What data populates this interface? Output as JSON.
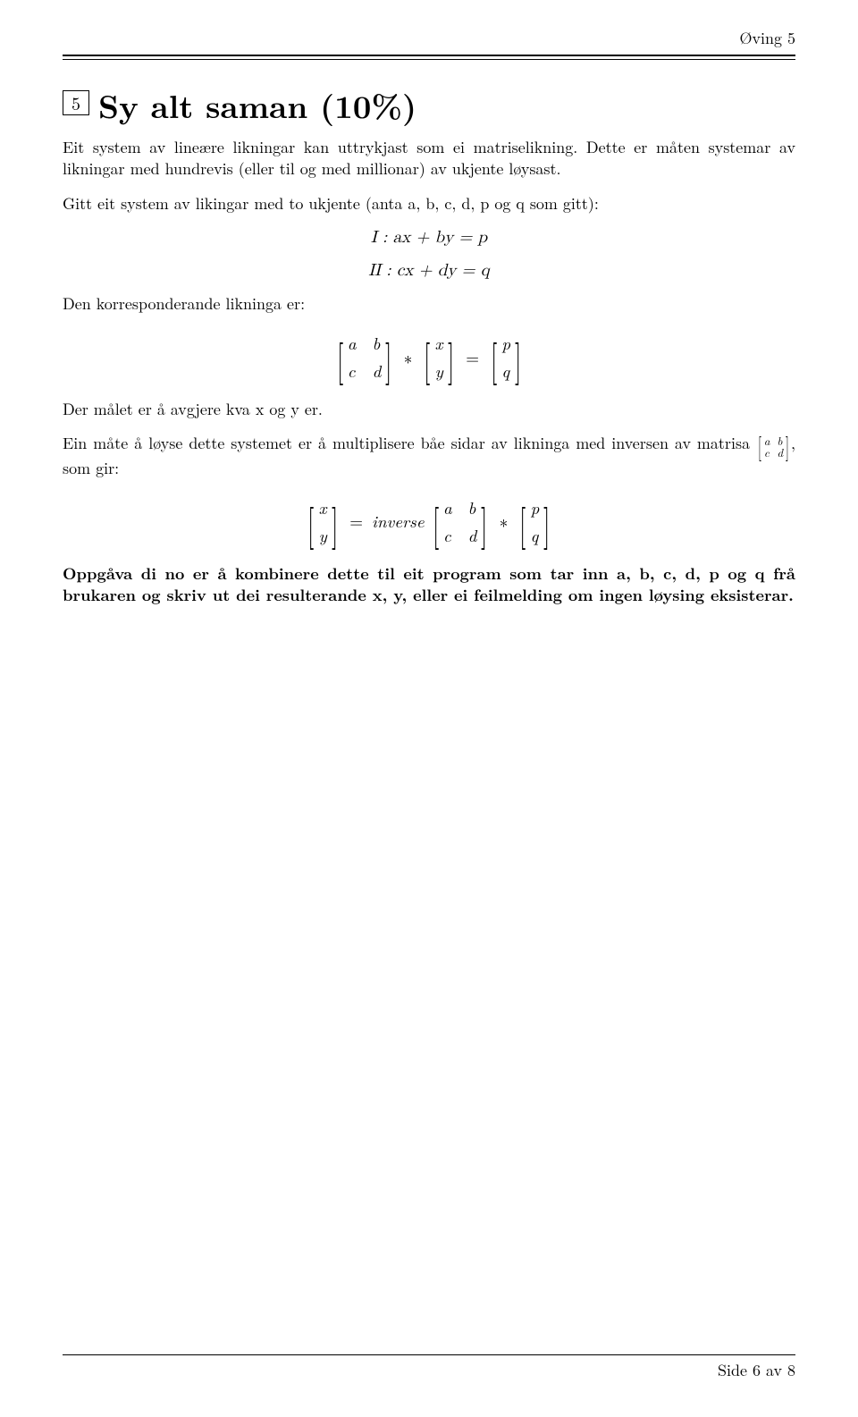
{
  "header": {
    "label": "Øving 5"
  },
  "problem": {
    "number": "5",
    "title": "Sy alt saman (10%)",
    "p1": "Eit system av lineære likningar kan uttrykjast som ei matriselikning. Dette er måten systemar av likningar med hundrevis (eller til og med millionar) av ukjente løysast.",
    "p2": "Gitt eit system av likingar med to ukjente (anta a, b, c, d, p og q som gitt):",
    "eq1": "I : ax + by = p",
    "eq2": "II : cx + dy = q",
    "p3": "Den korresponderande likninga er:",
    "matrix1": {
      "a": "a",
      "b": "b",
      "c": "c",
      "d": "d",
      "x": "x",
      "y": "y",
      "p": "p",
      "q": "q"
    },
    "p4": "Der målet er å avgjere kva x og y er.",
    "p5a": "Ein måte å løyse dette systemet er å multiplisere båe sidar av likninga med inversen av matrisa ",
    "p5b": ", som gir:",
    "small_matrix": {
      "a": "a",
      "b": "b",
      "c": "c",
      "d": "d"
    },
    "inverse_word": "inverse",
    "eq_op_star": "∗",
    "eq_op_eq": "=",
    "bold": "Oppgåva di no er å kombinere dette til eit program som tar inn a, b, c, d, p og q frå brukaren og skriv ut dei resulterande x, y, eller ei feilmelding om ingen løysing eksisterar."
  },
  "footer": {
    "text": "Side 6 av 8"
  }
}
